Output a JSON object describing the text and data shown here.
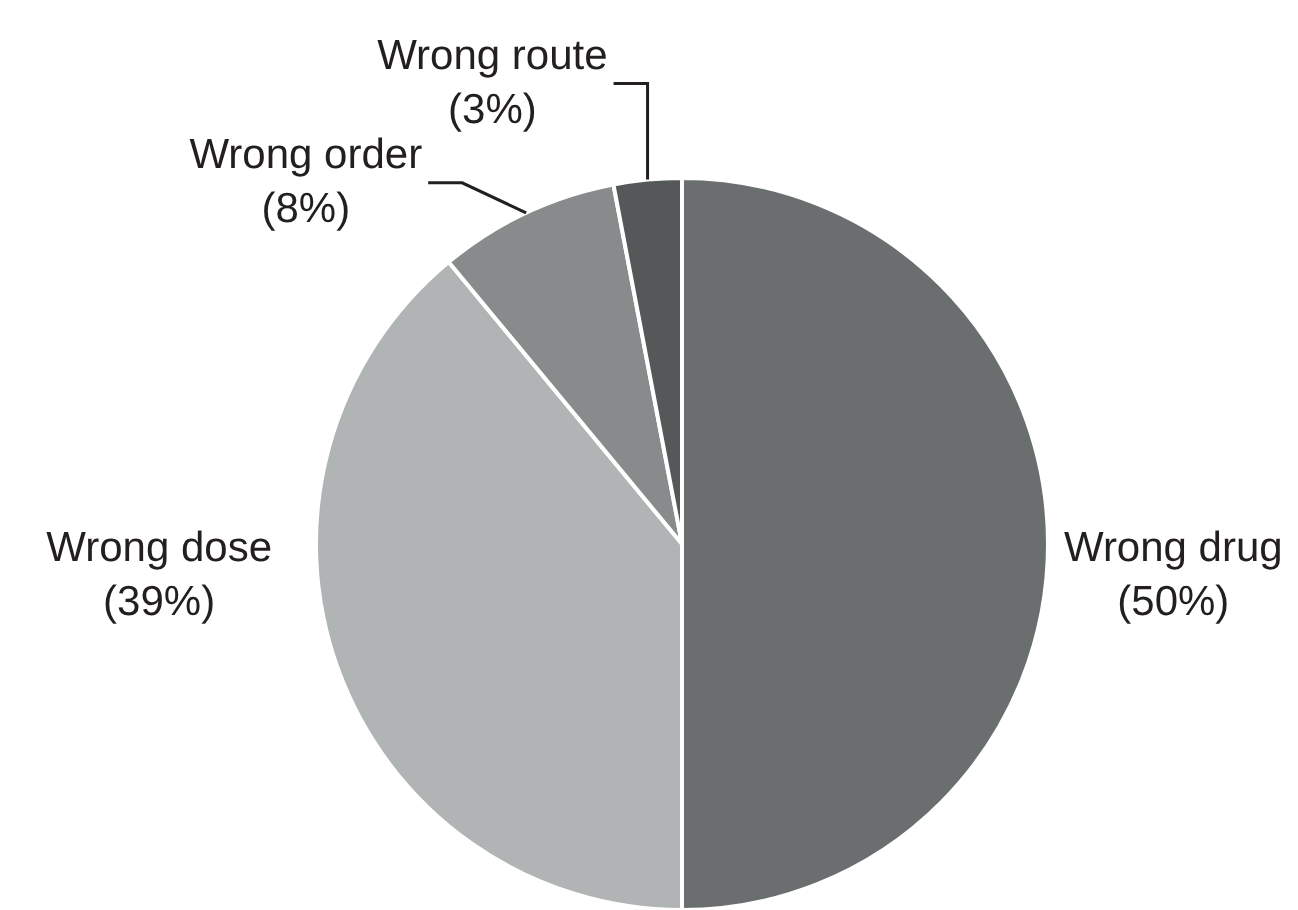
{
  "chart_data": {
    "type": "pie",
    "categories": [
      "Wrong drug",
      "Wrong dose",
      "Wrong order",
      "Wrong route"
    ],
    "values": [
      50,
      39,
      8,
      3
    ],
    "colors": [
      "#6b6e6f",
      "#b1b4b4",
      "#888b8c",
      "#555859"
    ],
    "value_labels": [
      "(50%)",
      "(39%)",
      "(8%)",
      "(3%)"
    ]
  }
}
